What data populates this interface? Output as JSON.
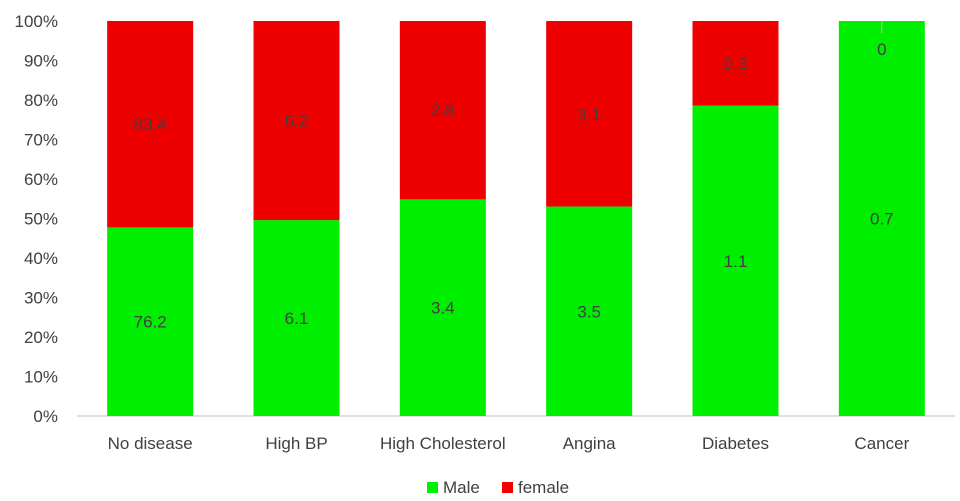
{
  "chart_data": {
    "type": "bar",
    "stacked": "percent",
    "categories": [
      "No disease",
      "High BP",
      "High Cholesterol",
      "Angina",
      "Diabetes",
      "Cancer"
    ],
    "series": [
      {
        "name": "Male",
        "values": [
          76.2,
          6.1,
          3.4,
          3.5,
          1.1,
          0.7
        ],
        "color": "#00ee00"
      },
      {
        "name": "female",
        "values": [
          83.4,
          6.2,
          2.8,
          3.1,
          0.3,
          0
        ],
        "color": "#ee0000"
      }
    ],
    "data_labels": {
      "Male": [
        "76.2",
        "6.1",
        "3.4",
        "3.5",
        "1.1",
        "0.7"
      ],
      "female": [
        "83.4",
        "6.2",
        "2.8",
        "3.1",
        "0.3",
        "0"
      ]
    },
    "y_ticks": [
      "0%",
      "10%",
      "20%",
      "30%",
      "40%",
      "50%",
      "60%",
      "70%",
      "80%",
      "90%",
      "100%"
    ],
    "ylim": [
      0,
      100
    ],
    "grid": false,
    "legend_position": "bottom",
    "axis_color": "#bfbfbf",
    "label_color": "#404040"
  }
}
